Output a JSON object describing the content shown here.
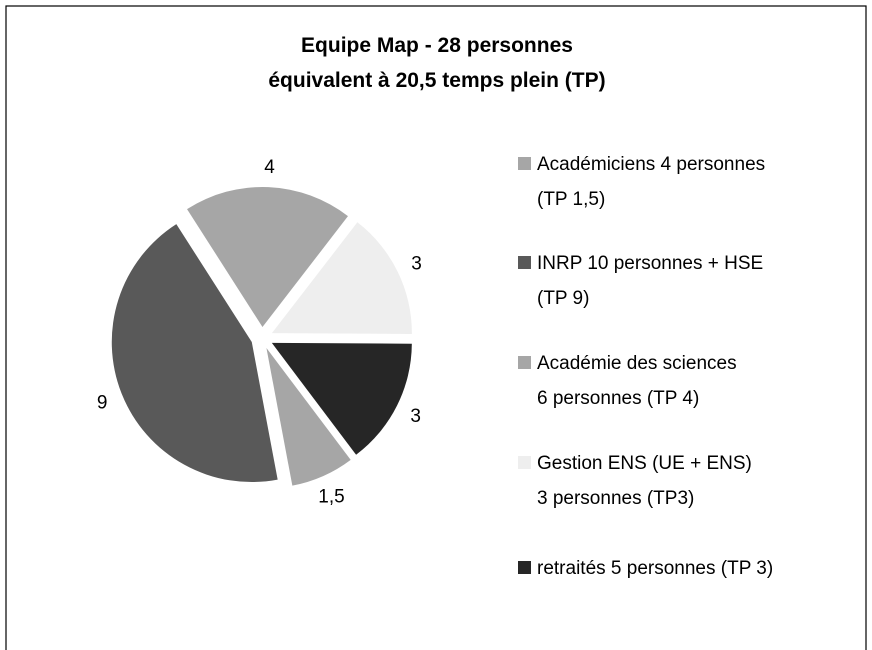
{
  "chart_data": {
    "type": "pie",
    "title": "Equipe Map - 28 personnes\néquivalent à 20,5 temps plein  (TP)",
    "categories": [
      "Académiciens 4 personnes\n(TP 1,5)",
      "INRP  10 personnes + HSE\n(TP 9)",
      "Académie des sciences\n6 personnes (TP 4)",
      "Gestion ENS (UE + ENS)\n3 personnes (TP3)",
      "retraités  5 personnes (TP 3)"
    ],
    "values": [
      1.5,
      9,
      4,
      3,
      3
    ],
    "value_labels": [
      "1,5",
      "9",
      "4",
      "3",
      "3"
    ],
    "colors": [
      "#a6a6a6",
      "#595959",
      "#a6a6a6",
      "#eeeeee",
      "#262626"
    ],
    "legend": "right"
  }
}
